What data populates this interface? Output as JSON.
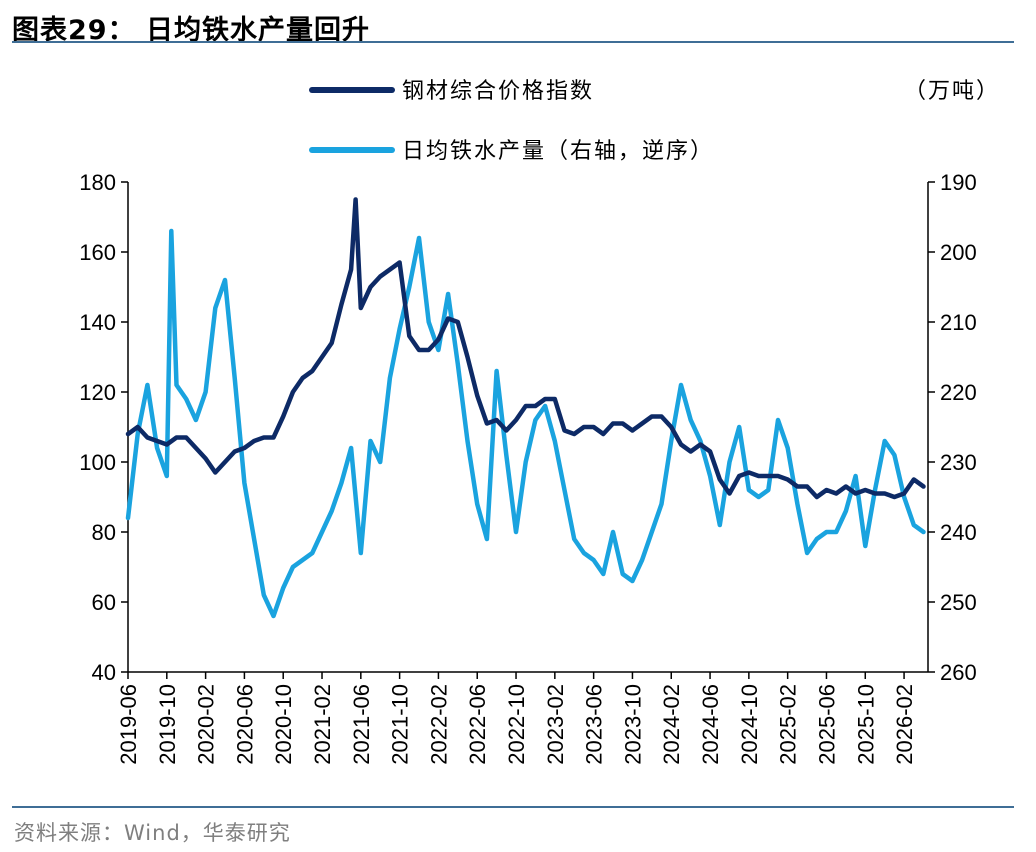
{
  "title": "图表29： 日均铁水产量回升",
  "source": "资料来源：Wind，华泰研究",
  "chart_data": {
    "type": "line",
    "unit_right": "（万吨）",
    "x_ticks": [
      "2019-06",
      "2019-10",
      "2020-02",
      "2020-06",
      "2020-10",
      "2021-02",
      "2021-06",
      "2021-10",
      "2022-02",
      "2022-06",
      "2022-10",
      "2023-02",
      "2023-06",
      "2023-10",
      "2024-02",
      "2024-06",
      "2024-10",
      "2025-02",
      "2025-06",
      "2025-10",
      "2026-02"
    ],
    "y_left": {
      "min": 40,
      "max": 180,
      "ticks": [
        40,
        60,
        80,
        100,
        120,
        140,
        160,
        180
      ]
    },
    "y_right": {
      "min": 190,
      "max": 260,
      "inverted": true,
      "ticks": [
        190,
        200,
        210,
        220,
        230,
        240,
        250,
        260
      ]
    },
    "series": [
      {
        "name": "钢材综合价格指数",
        "axis": "left",
        "color": "#0d2a66",
        "x": [
          "2019-06",
          "2019-07",
          "2019-08",
          "2019-09",
          "2019-10",
          "2019-11",
          "2019-12",
          "2020-01",
          "2020-02",
          "2020-03",
          "2020-04",
          "2020-05",
          "2020-06",
          "2020-07",
          "2020-08",
          "2020-09",
          "2020-10",
          "2020-11",
          "2020-12",
          "2021-01",
          "2021-02",
          "2021-03",
          "2021-04",
          "2021-05",
          "2021-05-15",
          "2021-06",
          "2021-07",
          "2021-08",
          "2021-09",
          "2021-10",
          "2021-11",
          "2021-12",
          "2022-01",
          "2022-02",
          "2022-03",
          "2022-04",
          "2022-05",
          "2022-06",
          "2022-07",
          "2022-08",
          "2022-09",
          "2022-10",
          "2022-11",
          "2022-12",
          "2023-01",
          "2023-02",
          "2023-03",
          "2023-04",
          "2023-05",
          "2023-06",
          "2023-07",
          "2023-08",
          "2023-09",
          "2023-10",
          "2023-11",
          "2023-12",
          "2024-01",
          "2024-02",
          "2024-03",
          "2024-04",
          "2024-05",
          "2024-06",
          "2024-07",
          "2024-08",
          "2024-09",
          "2024-10",
          "2024-11",
          "2024-12",
          "2025-01",
          "2025-02",
          "2025-03",
          "2025-04",
          "2025-05",
          "2025-06",
          "2025-07",
          "2025-08",
          "2025-09",
          "2025-10",
          "2025-11",
          "2025-12",
          "2026-01",
          "2026-02",
          "2026-03",
          "2026-04"
        ],
        "values": [
          108,
          110,
          107,
          106,
          105,
          107,
          107,
          104,
          101,
          97,
          100,
          103,
          104,
          106,
          107,
          107,
          113,
          120,
          124,
          126,
          130,
          134,
          145,
          155,
          175,
          144,
          150,
          153,
          155,
          157,
          136,
          132,
          132,
          135,
          141,
          140,
          130,
          119,
          111,
          112,
          109,
          112,
          116,
          116,
          118,
          118,
          109,
          108,
          110,
          110,
          108,
          111,
          111,
          109,
          111,
          113,
          113,
          110,
          105,
          103,
          105,
          103,
          95,
          91,
          96,
          97,
          96,
          96,
          96,
          95,
          93,
          93,
          90,
          92,
          91,
          93,
          91,
          92,
          91,
          91,
          90,
          91,
          95,
          93
        ]
      },
      {
        "name": "日均铁水产量（右轴，逆序）",
        "axis": "right",
        "color": "#1aa3df",
        "x": [
          "2019-06",
          "2019-07",
          "2019-08",
          "2019-09",
          "2019-10",
          "2019-10-15",
          "2019-11",
          "2019-12",
          "2020-01",
          "2020-02",
          "2020-03",
          "2020-04",
          "2020-05",
          "2020-06",
          "2020-07",
          "2020-08",
          "2020-09",
          "2020-10",
          "2020-11",
          "2020-12",
          "2021-01",
          "2021-02",
          "2021-03",
          "2021-04",
          "2021-05",
          "2021-06",
          "2021-07",
          "2021-08",
          "2021-09",
          "2021-10",
          "2021-11",
          "2021-12",
          "2022-01",
          "2022-02",
          "2022-03",
          "2022-04",
          "2022-05",
          "2022-06",
          "2022-07",
          "2022-08",
          "2022-09",
          "2022-10",
          "2022-11",
          "2022-12",
          "2023-01",
          "2023-02",
          "2023-03",
          "2023-04",
          "2023-05",
          "2023-06",
          "2023-07",
          "2023-08",
          "2023-09",
          "2023-10",
          "2023-11",
          "2023-12",
          "2024-01",
          "2024-02",
          "2024-03",
          "2024-04",
          "2024-05",
          "2024-06",
          "2024-07",
          "2024-08",
          "2024-09",
          "2024-10",
          "2024-11",
          "2024-12",
          "2025-01",
          "2025-02",
          "2025-03",
          "2025-04",
          "2025-05",
          "2025-06",
          "2025-07",
          "2025-08",
          "2025-09",
          "2025-10",
          "2025-11",
          "2025-12",
          "2026-01",
          "2026-02",
          "2026-03",
          "2026-04"
        ],
        "values": [
          238,
          226,
          219,
          228,
          232,
          197,
          219,
          221,
          224,
          220,
          208,
          204,
          218,
          233,
          241,
          249,
          252,
          248,
          245,
          244,
          243,
          240,
          237,
          233,
          228,
          243,
          227,
          230,
          218,
          211,
          205,
          198,
          210,
          214,
          206,
          216,
          227,
          236,
          241,
          217,
          229,
          240,
          230,
          224,
          222,
          227,
          234,
          241,
          243,
          244,
          246,
          240,
          246,
          247,
          244,
          240,
          236,
          227,
          219,
          224,
          227,
          232,
          239,
          230,
          225,
          234,
          235,
          234,
          224,
          228,
          236,
          243,
          241,
          240,
          240,
          237,
          232,
          242,
          234,
          227,
          229,
          235,
          239,
          240
        ]
      }
    ]
  }
}
